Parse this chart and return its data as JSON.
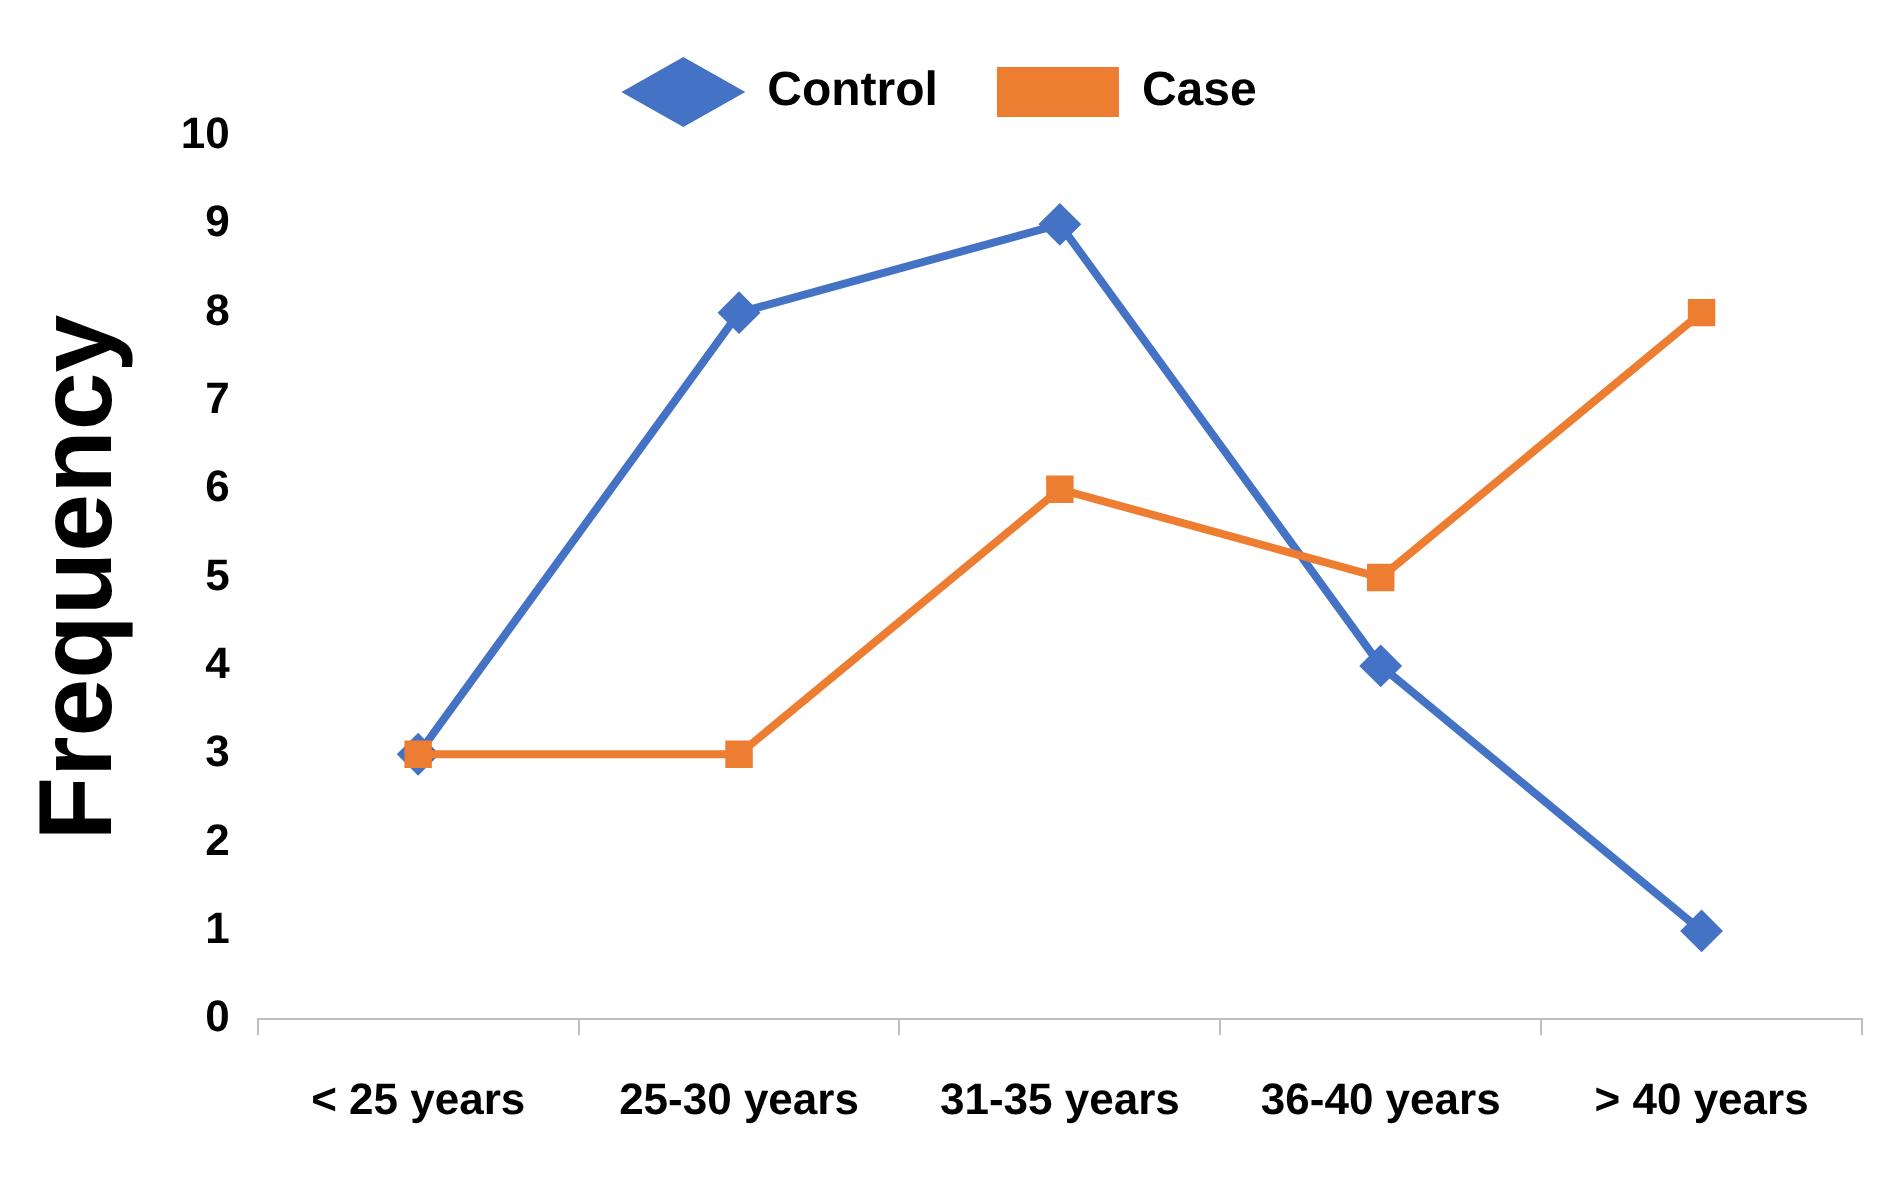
{
  "chart_data": {
    "type": "line",
    "ylabel": "Frequency",
    "categories": [
      "< 25 years",
      "25-30 years",
      "31-35 years",
      "36-40 years",
      "> 40 years"
    ],
    "series": [
      {
        "name": "Control",
        "color": "#4472c4",
        "marker": "diamond",
        "values": [
          3,
          8,
          9,
          4,
          1
        ]
      },
      {
        "name": "Case",
        "color": "#ed7d31",
        "marker": "square",
        "values": [
          3,
          3,
          6,
          5,
          8
        ]
      }
    ],
    "ylim": [
      0,
      10
    ],
    "yticks": [
      0,
      1,
      2,
      3,
      4,
      5,
      6,
      7,
      8,
      9,
      10
    ],
    "grid": false,
    "legend": "top",
    "line_style": "solid"
  }
}
